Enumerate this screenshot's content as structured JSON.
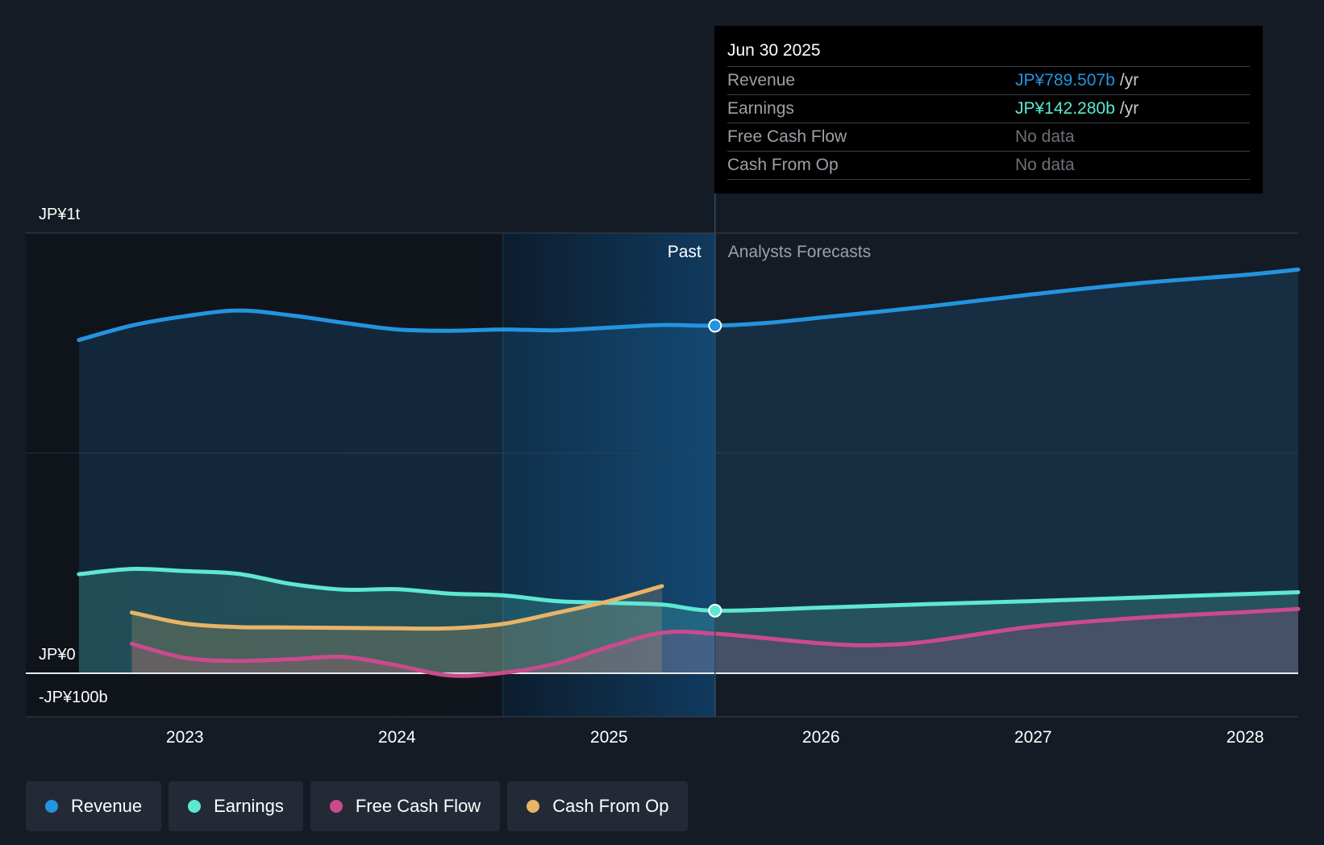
{
  "chart_data": {
    "type": "line",
    "title": "",
    "y_unit": "JP¥",
    "ylim_billions": [
      -100,
      1000
    ],
    "y_tick_labels": [
      {
        "value": 1000,
        "label": "JP¥1t"
      },
      {
        "value": 0,
        "label": "JP¥0"
      },
      {
        "value": -100,
        "label": "-JP¥100b"
      }
    ],
    "x_tick_labels": [
      {
        "value": 2023,
        "label": "2023"
      },
      {
        "value": 2024,
        "label": "2024"
      },
      {
        "value": 2025,
        "label": "2025"
      },
      {
        "value": 2026,
        "label": "2026"
      },
      {
        "value": 2027,
        "label": "2027"
      },
      {
        "value": 2028,
        "label": "2028"
      }
    ],
    "xlim": [
      2022.25,
      2028.25
    ],
    "past_label": "Past",
    "forecast_label": "Analysts Forecasts",
    "divider_x": 2025.5,
    "highlight_start_x": 2024.5,
    "series": [
      {
        "name": "Revenue",
        "color": "#2394df",
        "filled": true,
        "points": [
          [
            2022.5,
            757
          ],
          [
            2022.75,
            790
          ],
          [
            2023.0,
            811
          ],
          [
            2023.25,
            824
          ],
          [
            2023.5,
            813
          ],
          [
            2023.75,
            796
          ],
          [
            2024.0,
            781
          ],
          [
            2024.25,
            778
          ],
          [
            2024.5,
            781
          ],
          [
            2024.75,
            779
          ],
          [
            2025.0,
            785
          ],
          [
            2025.25,
            791
          ],
          [
            2025.5,
            789.507
          ]
        ],
        "forecast": [
          [
            2025.5,
            789.507
          ],
          [
            2025.75,
            796
          ],
          [
            2026.0,
            808
          ],
          [
            2026.5,
            833
          ],
          [
            2027.0,
            861
          ],
          [
            2027.5,
            886
          ],
          [
            2028.0,
            905
          ],
          [
            2028.25,
            917
          ]
        ]
      },
      {
        "name": "Earnings",
        "color": "#5ee8d1",
        "filled": true,
        "points": [
          [
            2022.5,
            225
          ],
          [
            2022.75,
            237
          ],
          [
            2023.0,
            232
          ],
          [
            2023.25,
            226
          ],
          [
            2023.5,
            203
          ],
          [
            2023.75,
            190
          ],
          [
            2024.0,
            191
          ],
          [
            2024.25,
            181
          ],
          [
            2024.5,
            177
          ],
          [
            2024.75,
            164
          ],
          [
            2025.0,
            160
          ],
          [
            2025.25,
            156
          ],
          [
            2025.5,
            142.28
          ]
        ],
        "forecast": [
          [
            2025.5,
            142.28
          ],
          [
            2026.0,
            149
          ],
          [
            2026.5,
            157
          ],
          [
            2027.0,
            164
          ],
          [
            2027.5,
            172
          ],
          [
            2028.0,
            180
          ],
          [
            2028.25,
            184
          ]
        ]
      },
      {
        "name": "Free Cash Flow",
        "color": "#cb4a8d",
        "filled": true,
        "points": [
          [
            2022.75,
            67
          ],
          [
            2023.0,
            35
          ],
          [
            2023.25,
            28
          ],
          [
            2023.5,
            32
          ],
          [
            2023.75,
            37
          ],
          [
            2024.0,
            18
          ],
          [
            2024.25,
            -5
          ],
          [
            2024.5,
            1
          ],
          [
            2024.75,
            22
          ],
          [
            2025.0,
            60
          ],
          [
            2025.25,
            92
          ]
        ],
        "forecast": [
          [
            2025.25,
            92
          ],
          [
            2025.5,
            90
          ],
          [
            2026.0,
            68
          ],
          [
            2026.25,
            64
          ],
          [
            2026.5,
            72
          ],
          [
            2027.0,
            106
          ],
          [
            2027.5,
            126
          ],
          [
            2028.0,
            139
          ],
          [
            2028.25,
            146
          ]
        ]
      },
      {
        "name": "Cash From Op",
        "color": "#e7b468",
        "filled": true,
        "points": [
          [
            2022.75,
            138
          ],
          [
            2023.0,
            113
          ],
          [
            2023.25,
            105
          ],
          [
            2023.5,
            104
          ],
          [
            2023.75,
            103
          ],
          [
            2024.0,
            102
          ],
          [
            2024.25,
            102
          ],
          [
            2024.5,
            112
          ],
          [
            2024.75,
            137
          ],
          [
            2025.0,
            164
          ],
          [
            2025.25,
            198
          ]
        ],
        "forecast": []
      }
    ],
    "highlight_points": [
      {
        "series": "Revenue",
        "x": 2025.5,
        "y": 789.507
      },
      {
        "series": "Earnings",
        "x": 2025.5,
        "y": 142.28
      }
    ]
  },
  "tooltip": {
    "date": "Jun 30 2025",
    "rows": [
      {
        "label": "Revenue",
        "value": "JP¥789.507b",
        "unit": "/yr",
        "color": "#2394df"
      },
      {
        "label": "Earnings",
        "value": "JP¥142.280b",
        "unit": "/yr",
        "color": "#5ee8d1"
      },
      {
        "label": "Free Cash Flow",
        "value": "No data",
        "unit": "",
        "color": "#6d7278"
      },
      {
        "label": "Cash From Op",
        "value": "No data",
        "unit": "",
        "color": "#6d7278"
      }
    ]
  },
  "legend": [
    {
      "label": "Revenue",
      "color": "#2394df"
    },
    {
      "label": "Earnings",
      "color": "#5ee8d1"
    },
    {
      "label": "Free Cash Flow",
      "color": "#cb4a8d"
    },
    {
      "label": "Cash From Op",
      "color": "#e7b468"
    }
  ]
}
